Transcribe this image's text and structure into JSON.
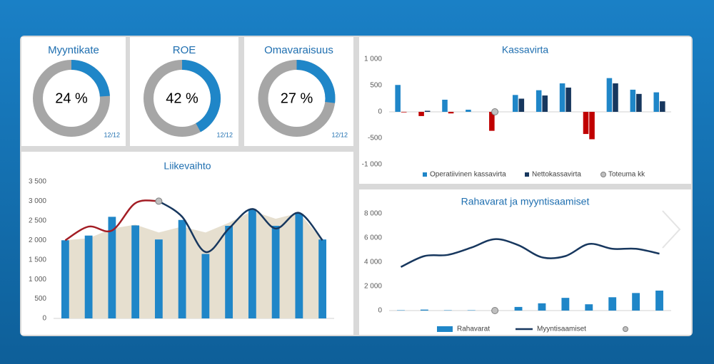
{
  "chart_data": [
    {
      "type": "donut",
      "title": "Myyntikate",
      "value": 24,
      "value_label": "24 %",
      "note": "12/12",
      "color": "#1f86c8",
      "track_color": "#a6a6a6"
    },
    {
      "type": "donut",
      "title": "ROE",
      "value": 42,
      "value_label": "42 %",
      "note": "12/12",
      "color": "#1f86c8",
      "track_color": "#a6a6a6"
    },
    {
      "type": "donut",
      "title": "Omavaraisuus",
      "value": 27,
      "value_label": "27 %",
      "note": "12/12",
      "color": "#1f86c8",
      "track_color": "#a6a6a6"
    },
    {
      "type": "combo",
      "title": "Liikevaihto",
      "legend": false,
      "categories": [
        null,
        null,
        null,
        null,
        null,
        null,
        null,
        null,
        null,
        null,
        null,
        null
      ],
      "ylim": [
        0,
        3500
      ],
      "yticks": [
        0,
        500,
        {
          "value": 1000,
          "label": "1 000"
        },
        {
          "value": 1500,
          "label": "1 500"
        },
        {
          "value": 2000,
          "label": "2 000"
        },
        {
          "value": 2500,
          "label": "2 500"
        },
        {
          "value": 3000,
          "label": "3 000"
        },
        {
          "value": 3500,
          "label": "3 500"
        }
      ],
      "series": [
        {
          "type": "area",
          "color": "#e6dfcf",
          "values": [
            2000,
            2050,
            2300,
            2400,
            2200,
            2350,
            2200,
            2450,
            2750,
            2550,
            2700,
            2000
          ]
        },
        {
          "type": "bar",
          "color": "#1f86c8",
          "values": [
            2000,
            2120,
            2600,
            2380,
            2020,
            2520,
            1650,
            2370,
            2800,
            2370,
            2680,
            2020
          ]
        },
        {
          "type": "line",
          "color": "#a31d24",
          "values": [
            2000,
            2350,
            2250,
            2950,
            3000,
            null,
            null,
            null,
            null,
            null,
            null,
            null
          ]
        },
        {
          "type": "line",
          "color": "#17375e",
          "values": [
            null,
            null,
            null,
            null,
            3000,
            2600,
            1700,
            2300,
            2800,
            2300,
            2700,
            2000
          ]
        },
        {
          "type": "marker",
          "color": "#bfbfbf",
          "values": [
            null,
            null,
            null,
            null,
            3000,
            null,
            null,
            null,
            null,
            null,
            null,
            null
          ]
        }
      ]
    },
    {
      "type": "combo",
      "title": "Kassavirta",
      "legend": "bottom",
      "categories": [
        null,
        null,
        null,
        null,
        null,
        null,
        null,
        null,
        null,
        null,
        null,
        null
      ],
      "ylim": [
        -1000,
        1000
      ],
      "yticks": [
        {
          "value": -1000,
          "label": "-1 000"
        },
        -500,
        0,
        500,
        {
          "value": 1000,
          "label": "1 000"
        }
      ],
      "series": [
        {
          "name": "Operatiivinen kassavirta",
          "type": "bar",
          "color": "#1f86c8",
          "negative_color": "#c00000",
          "values": [
            510,
            -80,
            230,
            40,
            -360,
            320,
            410,
            540,
            -420,
            640,
            420,
            370
          ]
        },
        {
          "name": "Nettokassavirta",
          "type": "bar",
          "color": "#17375e",
          "negative_color": "#c00000",
          "values": [
            -10,
            20,
            -30,
            0,
            0,
            250,
            310,
            460,
            -520,
            540,
            340,
            200
          ]
        },
        {
          "name": "Toteuma kk",
          "type": "marker",
          "color": "#bfbfbf",
          "values": [
            null,
            null,
            null,
            null,
            0,
            null,
            null,
            null,
            null,
            null,
            null,
            null
          ]
        }
      ]
    },
    {
      "type": "combo",
      "title": "Rahavarat ja myyntisaamiset",
      "legend": "bottom",
      "categories": [
        null,
        null,
        null,
        null,
        null,
        null,
        null,
        null,
        null,
        null,
        null,
        null
      ],
      "ylim": [
        0,
        8000
      ],
      "yticks": [
        0,
        {
          "value": 2000,
          "label": "2 000"
        },
        {
          "value": 4000,
          "label": "4 000"
        },
        {
          "value": 6000,
          "label": "6 000"
        },
        {
          "value": 8000,
          "label": "8 000"
        }
      ],
      "series": [
        {
          "name": "Rahavarat",
          "type": "bar",
          "color": "#1f86c8",
          "values": [
            30,
            80,
            30,
            30,
            null,
            300,
            600,
            1050,
            520,
            1100,
            1450,
            1650
          ]
        },
        {
          "name": "Myyntisaamiset",
          "type": "line",
          "color": "#17375e",
          "values": [
            3600,
            4500,
            4600,
            5200,
            5900,
            5400,
            4400,
            4500,
            5500,
            5100,
            5100,
            4700
          ]
        },
        {
          "type": "marker",
          "color": "#bfbfbf",
          "values": [
            null,
            null,
            null,
            null,
            0,
            null,
            null,
            null,
            null,
            null,
            null,
            null
          ]
        }
      ]
    }
  ]
}
